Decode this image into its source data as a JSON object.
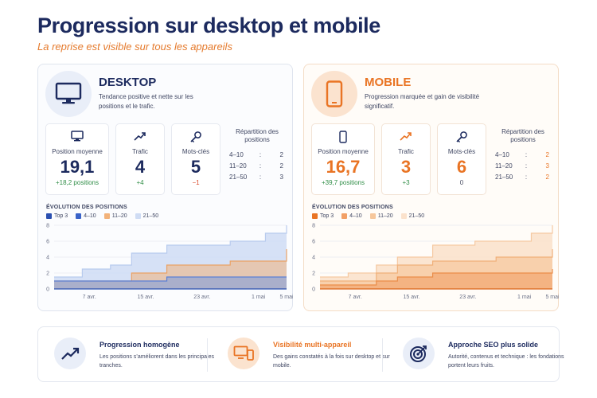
{
  "title": "Progression sur desktop et mobile",
  "subtitle": "La reprise est visible sur tous les appareils",
  "desktop": {
    "title": "DESKTOP",
    "description": "Tendance positive et nette sur les positions et le trafic.",
    "icon": "monitor-icon",
    "kpis": {
      "position": {
        "label": "Position moyenne",
        "value": "19,1",
        "delta": "+18,2 positions"
      },
      "trafic": {
        "label": "Trafic",
        "value": "4",
        "delta": "+4"
      },
      "motscles": {
        "label": "Mots-clés",
        "value": "5",
        "delta": "−1"
      }
    },
    "repartition": {
      "title": "Répartition des positions",
      "rows": [
        {
          "range": "4–10",
          "sep": ":",
          "value": "2"
        },
        {
          "range": "11–20",
          "sep": ":",
          "value": "2"
        },
        {
          "range": "21–50",
          "sep": ":",
          "value": "3"
        }
      ]
    }
  },
  "mobile": {
    "title": "MOBILE",
    "description": "Progression marquée et gain de visibilité significatif.",
    "icon": "smartphone-icon",
    "kpis": {
      "position": {
        "label": "Position moyenne",
        "value": "16,7",
        "delta": "+39,7 positions"
      },
      "trafic": {
        "label": "Trafic",
        "value": "3",
        "delta": "+3"
      },
      "motscles": {
        "label": "Mots-clés",
        "value": "6",
        "delta": "0"
      }
    },
    "repartition": {
      "title": "Répartition des positions",
      "rows": [
        {
          "range": "4–10",
          "sep": ":",
          "value": "2"
        },
        {
          "range": "11–20",
          "sep": ":",
          "value": "3"
        },
        {
          "range": "21–50",
          "sep": ":",
          "value": "2"
        }
      ]
    }
  },
  "chart_data": [
    {
      "type": "area",
      "panel": "desktop",
      "title": "ÉVOLUTION DES POSITIONS",
      "legend": [
        "Top 3",
        "4–10",
        "11–20",
        "21–50"
      ],
      "legend_placement": "top-left",
      "x_tick_labels": [
        "7 avr.",
        "15 avr.",
        "23 avr.",
        "1 mai",
        "5 mai"
      ],
      "x": [
        "2 avr.",
        "5 avr.",
        "6 avr.",
        "10 avr.",
        "13 avr.",
        "14 avr.",
        "18 avr.",
        "24 avr.",
        "27 avr.",
        "2 mai",
        "5 mai"
      ],
      "ylim": [
        0,
        8
      ],
      "yticks": [
        0,
        2,
        4,
        6,
        8
      ],
      "grid": true,
      "colors": {
        "top3": "#3a63c8",
        "4_10": "#7a9ae0",
        "11_20": "#f2b27a",
        "21_50": "#cfdcf4"
      },
      "series": [
        {
          "name": "Top 3",
          "values": [
            0,
            0,
            0,
            0,
            0,
            0,
            0,
            0,
            0,
            0,
            0
          ]
        },
        {
          "name": "4–10",
          "values": [
            1,
            1,
            1,
            1,
            1,
            1,
            1.5,
            1.5,
            1.5,
            1.5,
            1.5
          ]
        },
        {
          "name": "11–20",
          "values": [
            1,
            1,
            1,
            1,
            2,
            2,
            3,
            3,
            3.5,
            3.5,
            5
          ]
        },
        {
          "name": "21–50",
          "values": [
            1.5,
            1.5,
            2.5,
            3,
            4.5,
            4.5,
            5.5,
            5.5,
            6,
            7,
            8
          ]
        }
      ]
    },
    {
      "type": "area",
      "panel": "mobile",
      "title": "ÉVOLUTION DES POSITIONS",
      "legend": [
        "Top 3",
        "4–10",
        "11–20",
        "21–50"
      ],
      "legend_placement": "top-left",
      "x_tick_labels": [
        "7 avr.",
        "15 avr.",
        "23 avr.",
        "1 mai",
        "5 mai"
      ],
      "x": [
        "2 avr.",
        "5 avr.",
        "6 avr.",
        "10 avr.",
        "13 avr.",
        "14 avr.",
        "18 avr.",
        "24 avr.",
        "27 avr.",
        "2 mai",
        "5 mai"
      ],
      "ylim": [
        0,
        8
      ],
      "yticks": [
        0,
        2,
        4,
        6,
        8
      ],
      "grid": true,
      "colors": {
        "top3": "#e97424",
        "4_10": "#f2a066",
        "11_20": "#f6c79c",
        "21_50": "#fbe2cc"
      },
      "series": [
        {
          "name": "Top 3",
          "values": [
            0,
            0,
            0,
            0,
            0,
            0,
            0,
            0,
            0,
            0,
            0
          ]
        },
        {
          "name": "4–10",
          "values": [
            0.5,
            0.5,
            0.5,
            1,
            1.5,
            1.5,
            2,
            2,
            2,
            2,
            2.5
          ]
        },
        {
          "name": "11–20",
          "values": [
            1,
            1,
            1,
            2,
            3,
            3,
            3.5,
            3.5,
            4,
            4,
            5
          ]
        },
        {
          "name": "21–50",
          "values": [
            1.5,
            1.5,
            2,
            3,
            4,
            4,
            5.5,
            6,
            6,
            7,
            8
          ]
        }
      ]
    }
  ],
  "summary": [
    {
      "title": "Progression homogène",
      "description": "Les positions s’améliorent dans les principales tranches.",
      "icon": "trend-up-icon"
    },
    {
      "title": "Visibilité multi-appareil",
      "description": "Des gains constatés à la fois sur desktop et sur mobile.",
      "icon": "devices-icon"
    },
    {
      "title": "Approche SEO plus solide",
      "description": "Autorité, contenus et technique : les fondations portent leurs fruits.",
      "icon": "target-icon"
    }
  ]
}
